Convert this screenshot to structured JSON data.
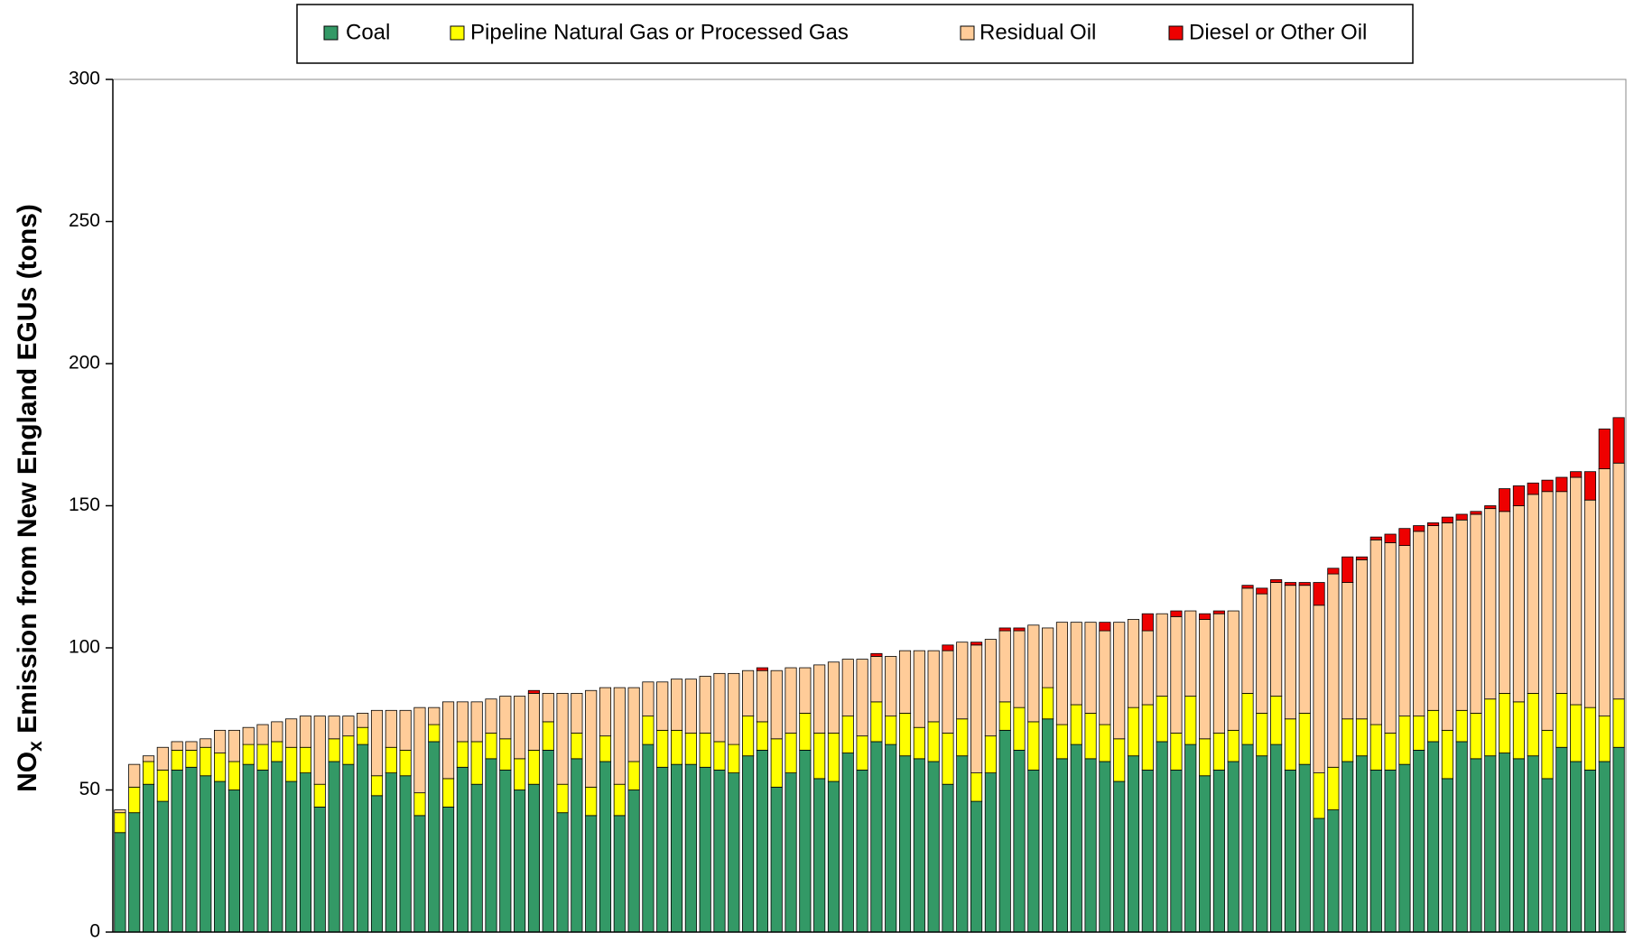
{
  "chart_data": {
    "type": "stacked_bar",
    "ylabel": [
      "NO",
      "x",
      " Emission from New England EGUs (tons)"
    ],
    "ylim": [
      0,
      300
    ],
    "yticks": [
      0,
      50,
      100,
      150,
      200,
      250,
      300
    ],
    "legend": "top",
    "series": [
      {
        "name": "Coal",
        "color": "#339966",
        "values": [
          35,
          42,
          52,
          46,
          57,
          58,
          55,
          53,
          50,
          59,
          57,
          60,
          53,
          56,
          44,
          60,
          59,
          66,
          48,
          56,
          55,
          41,
          67,
          44,
          58,
          52,
          61,
          57,
          50,
          52,
          64,
          42,
          61,
          41,
          60,
          41,
          50,
          66,
          58,
          59,
          59,
          58,
          57,
          56,
          62,
          64,
          51,
          56,
          64,
          54,
          53,
          63,
          57,
          67,
          66,
          62,
          61,
          60,
          52,
          62,
          46,
          56,
          71,
          64,
          57,
          75,
          61,
          66,
          61,
          60,
          53,
          62,
          57,
          67,
          57,
          66,
          55,
          57,
          60,
          66,
          62,
          66,
          57,
          59,
          40,
          43,
          60,
          62,
          57,
          57,
          59,
          64,
          67,
          54,
          67,
          61,
          62,
          63,
          61,
          62,
          54,
          65,
          60,
          57,
          60,
          65
        ]
      },
      {
        "name": "Pipeline Natural Gas or Processed Gas",
        "color": "#ffff00",
        "values": [
          7,
          9,
          8,
          11,
          7,
          6,
          10,
          10,
          10,
          7,
          9,
          7,
          12,
          9,
          8,
          8,
          10,
          6,
          7,
          9,
          9,
          8,
          6,
          10,
          9,
          15,
          9,
          11,
          11,
          12,
          10,
          10,
          9,
          10,
          9,
          11,
          10,
          10,
          13,
          12,
          11,
          12,
          10,
          10,
          14,
          10,
          17,
          14,
          13,
          16,
          17,
          13,
          12,
          14,
          10,
          15,
          11,
          14,
          18,
          13,
          10,
          13,
          10,
          15,
          17,
          11,
          12,
          14,
          16,
          13,
          15,
          17,
          23,
          16,
          13,
          17,
          13,
          13,
          11,
          18,
          15,
          17,
          18,
          18,
          16,
          15,
          15,
          13,
          16,
          13,
          17,
          12,
          11,
          17,
          11,
          16,
          20,
          21,
          20,
          22,
          17,
          19,
          20,
          22,
          16,
          17
        ]
      },
      {
        "name": "Residual Oil",
        "color": "#ffcc99",
        "values": [
          1,
          8,
          2,
          8,
          3,
          3,
          3,
          8,
          11,
          6,
          7,
          7,
          10,
          11,
          24,
          8,
          7,
          5,
          23,
          13,
          14,
          30,
          6,
          27,
          14,
          14,
          12,
          15,
          22,
          20,
          10,
          32,
          14,
          34,
          17,
          34,
          26,
          12,
          17,
          18,
          19,
          20,
          24,
          25,
          16,
          18,
          24,
          23,
          16,
          24,
          25,
          20,
          27,
          16,
          21,
          22,
          27,
          25,
          29,
          27,
          45,
          34,
          25,
          27,
          34,
          21,
          36,
          29,
          32,
          33,
          41,
          31,
          26,
          29,
          41,
          30,
          42,
          42,
          42,
          37,
          42,
          40,
          47,
          45,
          59,
          68,
          48,
          56,
          65,
          67,
          60,
          65,
          65,
          73,
          67,
          70,
          67,
          64,
          69,
          70,
          84,
          71,
          80,
          73,
          87,
          83
        ]
      },
      {
        "name": "Diesel or Other Oil",
        "color": "#ee0000",
        "values": [
          0,
          0,
          0,
          0,
          0,
          0,
          0,
          0,
          0,
          0,
          0,
          0,
          0,
          0,
          0,
          0,
          0,
          0,
          0,
          0,
          0,
          0,
          0,
          0,
          0,
          0,
          0,
          0,
          0,
          1,
          0,
          0,
          0,
          0,
          0,
          0,
          0,
          0,
          0,
          0,
          0,
          0,
          0,
          0,
          0,
          1,
          0,
          0,
          0,
          0,
          0,
          0,
          0,
          1,
          0,
          0,
          0,
          0,
          2,
          0,
          1,
          0,
          1,
          1,
          0,
          0,
          0,
          0,
          0,
          3,
          0,
          0,
          6,
          0,
          2,
          0,
          2,
          1,
          0,
          1,
          2,
          1,
          1,
          1,
          8,
          2,
          9,
          1,
          1,
          3,
          6,
          2,
          1,
          2,
          2,
          1,
          1,
          8,
          7,
          4,
          4,
          5,
          2,
          10,
          14,
          16
        ]
      }
    ]
  }
}
